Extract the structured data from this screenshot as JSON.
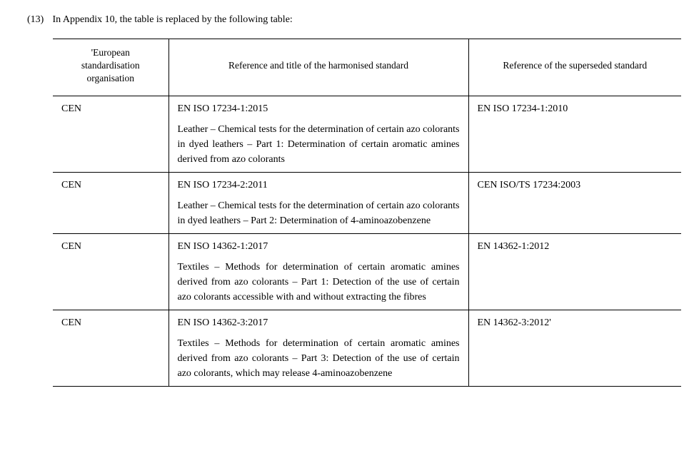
{
  "intro": {
    "number": "(13)",
    "text": "In Appendix 10, the table is replaced by the following table:"
  },
  "table": {
    "headers": {
      "org": "'European standardisation organisation",
      "ref": "Reference and title of the harmonised standard",
      "sup": "Reference of the superseded standard"
    },
    "rows": [
      {
        "org": "CEN",
        "ref_code": "EN ISO 17234-1:2015",
        "ref_title": "Leather – Chemical tests for the determination of certain azo colorants in dyed leathers – Part 1: Determination of certain aromatic amines derived from azo colorants",
        "superseded": "EN ISO 17234-1:2010"
      },
      {
        "org": "CEN",
        "ref_code": "EN ISO 17234-2:2011",
        "ref_title": "Leather – Chemical tests for the determination of certain azo colorants in dyed leathers – Part 2: Determination of 4-aminoazobenzene",
        "superseded": "CEN ISO/TS 17234:2003"
      },
      {
        "org": "CEN",
        "ref_code": "EN ISO 14362-1:2017",
        "ref_title": "Textiles – Methods for determination of certain aromatic amines derived from azo colorants – Part 1: Detection of the use of certain azo colorants accessible with and without extracting the fibres",
        "superseded": "EN 14362-1:2012"
      },
      {
        "org": "CEN",
        "ref_code": "EN ISO 14362-3:2017",
        "ref_title": "Textiles – Methods for determination of certain aromatic amines derived from azo colorants – Part 3: Detection of the use of certain azo colorants, which may release 4-aminoazobenzene",
        "superseded": "EN 14362-3:2012'"
      }
    ]
  }
}
